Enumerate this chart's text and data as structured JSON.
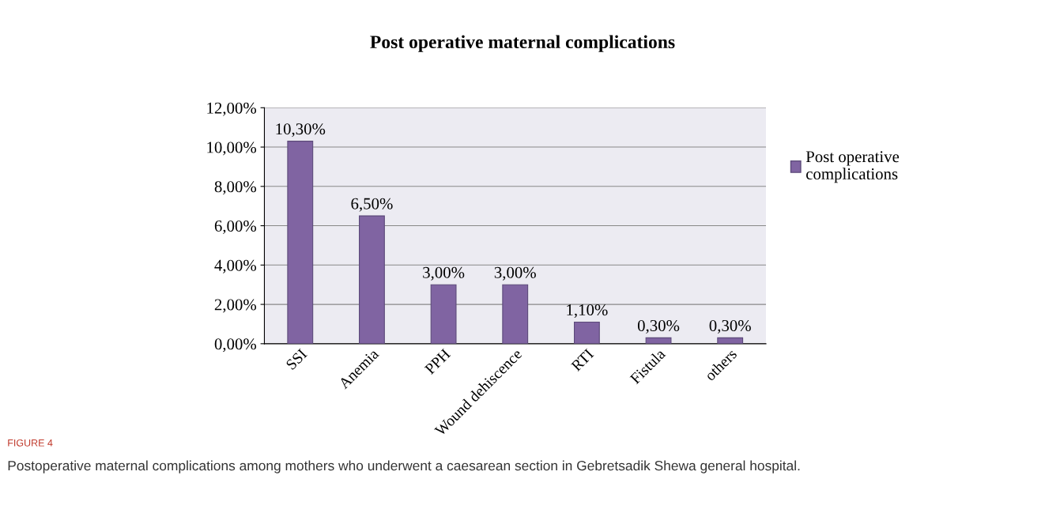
{
  "chart_data": {
    "type": "bar",
    "title": "Post operative maternal complications",
    "categories": [
      "SSI",
      "Anemia",
      "PPH",
      "Wound dehiscence",
      "RTI",
      "Fistula",
      "others"
    ],
    "series": [
      {
        "name": "Post operative complications",
        "color": "#8064a2",
        "values": [
          10.3,
          6.5,
          3.0,
          3.0,
          1.1,
          0.3,
          0.3
        ],
        "value_labels": [
          "10,30%",
          "6,50%",
          "3,00%",
          "3,00%",
          "1,10%",
          "0,30%",
          "0,30%"
        ]
      }
    ],
    "ylim": [
      0,
      12
    ],
    "yticks": [
      {
        "value": 0,
        "label": "0,00%"
      },
      {
        "value": 2,
        "label": "2,00%"
      },
      {
        "value": 4,
        "label": "4,00%"
      },
      {
        "value": 6,
        "label": "6,00%"
      },
      {
        "value": 8,
        "label": "8,00%"
      },
      {
        "value": 10,
        "label": "10,00%"
      },
      {
        "value": 12,
        "label": "12,00%"
      }
    ],
    "grid": "y",
    "legend": "right",
    "annotations": [
      "FIGURE 4",
      "Postoperative maternal complications among mothers who underwent a caesarean section in Gebretsadik Shewa general hospital."
    ]
  }
}
